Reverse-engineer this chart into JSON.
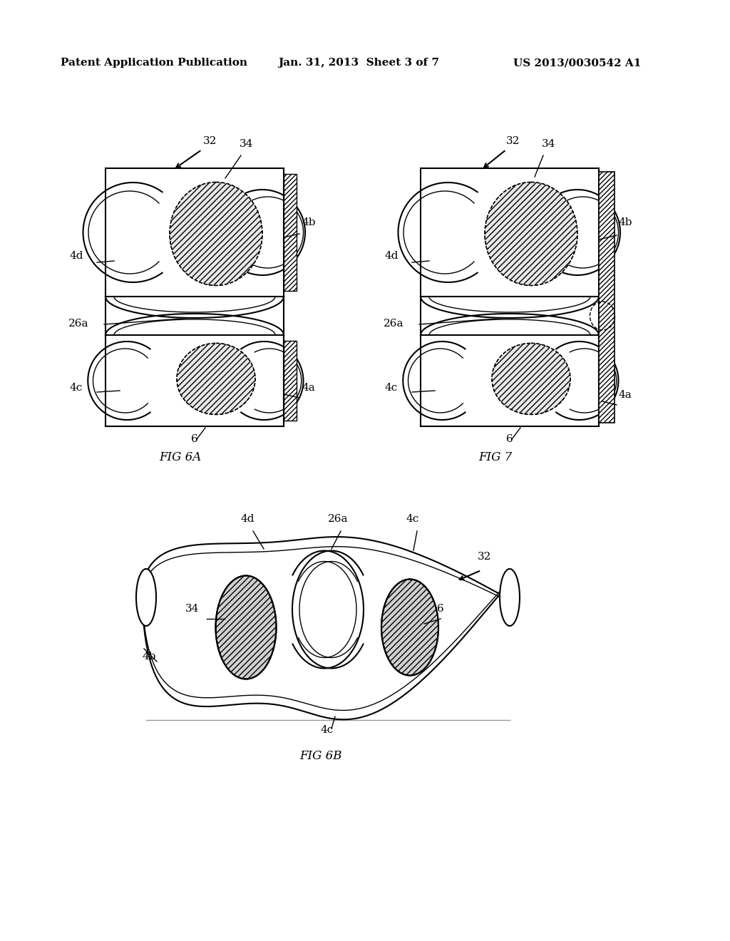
{
  "background_color": "#ffffff",
  "header_left": "Patent Application Publication",
  "header_center": "Jan. 31, 2013  Sheet 3 of 7",
  "header_right": "US 2013/0030542 A1",
  "header_fontsize": 11,
  "fig6a_label": "FIG 6A",
  "fig6b_label": "FIG 6B",
  "fig7_label": "FIG 7",
  "label_fontsize": 12,
  "annotation_fontsize": 11
}
